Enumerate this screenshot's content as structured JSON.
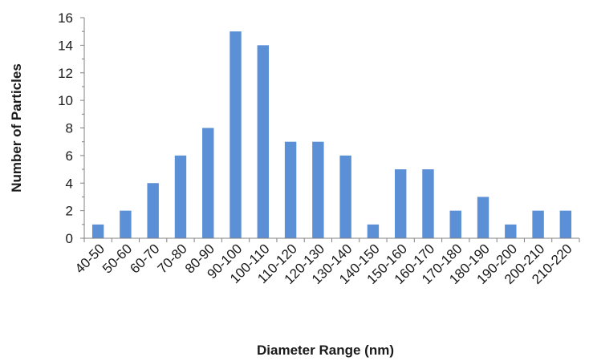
{
  "chart_data": {
    "type": "bar",
    "title": "",
    "xlabel": "Diameter Range (nm)",
    "ylabel": "Number of Particles",
    "ylim": [
      0,
      16
    ],
    "yticks": [
      0,
      2,
      4,
      6,
      8,
      10,
      12,
      14,
      16
    ],
    "grid": false,
    "legend": "none",
    "bar_color": "#5b8fd6",
    "categories": [
      "40-50",
      "50-60",
      "60-70",
      "70-80",
      "80-90",
      "90-100",
      "100-110",
      "110-120",
      "120-130",
      "130-140",
      "140-150",
      "150-160",
      "160-170",
      "170-180",
      "180-190",
      "190-200",
      "200-210",
      "210-220"
    ],
    "values": [
      1,
      2,
      4,
      6,
      8,
      15,
      14,
      7,
      7,
      6,
      1,
      5,
      5,
      2,
      3,
      1,
      2,
      2
    ]
  }
}
